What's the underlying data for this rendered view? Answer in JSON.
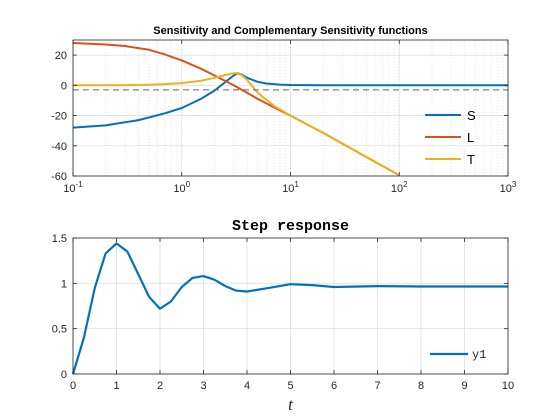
{
  "colors": {
    "S": "#0072BD",
    "L": "#D95319",
    "T": "#EDB120",
    "y1": "#0072BD",
    "axis": "#262626",
    "grid": "#DFDFDF",
    "threshold": "#666666"
  },
  "chart_data": [
    {
      "type": "line",
      "title": "Sensitivity and Complementary Sensitivity functions",
      "xlabel": "",
      "ylabel": "",
      "xscale": "log",
      "xlim": [
        0.1,
        1000
      ],
      "ylim": [
        -60,
        30
      ],
      "yticks": [
        {
          "value": 20,
          "label": "20"
        },
        {
          "value": 0,
          "label": "0"
        },
        {
          "value": -20,
          "label": "-20"
        },
        {
          "value": -40,
          "label": "-40"
        },
        {
          "value": -60,
          "label": "-60"
        }
      ],
      "xticks": [
        {
          "value": 0.1,
          "base": "10",
          "exp": "-1"
        },
        {
          "value": 1,
          "base": "10",
          "exp": "0"
        },
        {
          "value": 10,
          "base": "10",
          "exp": "1"
        },
        {
          "value": 100,
          "base": "10",
          "exp": "2"
        },
        {
          "value": 1000,
          "base": "10",
          "exp": "3"
        }
      ],
      "grid": true,
      "legend_position": "bottom-right",
      "threshold_line": -3,
      "series": [
        {
          "name": "S",
          "x": [
            0.1,
            0.2,
            0.4,
            0.7,
            1,
            1.5,
            2,
            2.5,
            3,
            3.3,
            3.6,
            4,
            5,
            6,
            8,
            10,
            20,
            100,
            1000
          ],
          "y": [
            -28,
            -26.5,
            -23,
            -18.5,
            -15,
            -9,
            -3.5,
            2,
            6.5,
            8,
            7,
            5,
            2.3,
            1.2,
            0.5,
            0.2,
            0,
            0,
            0
          ]
        },
        {
          "name": "L",
          "x": [
            0.1,
            0.2,
            0.3,
            0.5,
            0.7,
            1,
            1.5,
            2,
            2.5,
            3,
            4,
            5,
            7,
            10,
            20,
            50,
            100
          ],
          "y": [
            28,
            27,
            26,
            23.5,
            20.5,
            16.5,
            11,
            6.5,
            3,
            0,
            -5,
            -9,
            -14.5,
            -20,
            -31.5,
            -47.5,
            -59.5
          ]
        },
        {
          "name": "T",
          "x": [
            0.1,
            0.3,
            0.5,
            0.7,
            1,
            1.5,
            2,
            2.5,
            3,
            3.3,
            3.6,
            4,
            5,
            7,
            10,
            20,
            50,
            100
          ],
          "y": [
            0,
            0.1,
            0.4,
            0.8,
            1.5,
            3,
            5,
            6.8,
            8,
            8,
            6.5,
            3.5,
            -5,
            -13.5,
            -20,
            -31.5,
            -47.5,
            -59.5
          ]
        }
      ]
    },
    {
      "type": "line",
      "title": "Step response",
      "xlabel": "t",
      "ylabel": "",
      "xlim": [
        0,
        10
      ],
      "ylim": [
        0,
        1.5
      ],
      "xticks": [
        {
          "value": 0,
          "label": "0"
        },
        {
          "value": 1,
          "label": "1"
        },
        {
          "value": 2,
          "label": "2"
        },
        {
          "value": 3,
          "label": "3"
        },
        {
          "value": 4,
          "label": "4"
        },
        {
          "value": 5,
          "label": "5"
        },
        {
          "value": 6,
          "label": "6"
        },
        {
          "value": 7,
          "label": "7"
        },
        {
          "value": 8,
          "label": "8"
        },
        {
          "value": 9,
          "label": "9"
        },
        {
          "value": 10,
          "label": "10"
        }
      ],
      "yticks": [
        {
          "value": 0,
          "label": "0"
        },
        {
          "value": 0.5,
          "label": "0.5"
        },
        {
          "value": 1,
          "label": "1"
        },
        {
          "value": 1.5,
          "label": "1.5"
        }
      ],
      "grid": true,
      "legend_position": "bottom-right",
      "series": [
        {
          "name": "y1",
          "x": [
            0,
            0.25,
            0.5,
            0.75,
            1,
            1.25,
            1.5,
            1.75,
            2,
            2.25,
            2.5,
            2.75,
            3,
            3.25,
            3.5,
            3.75,
            4,
            4.5,
            5,
            5.5,
            6,
            7,
            8,
            9,
            10
          ],
          "y": [
            0,
            0.4,
            0.95,
            1.33,
            1.44,
            1.35,
            1.1,
            0.85,
            0.72,
            0.8,
            0.96,
            1.06,
            1.08,
            1.04,
            0.97,
            0.92,
            0.91,
            0.95,
            0.99,
            0.98,
            0.96,
            0.97,
            0.965,
            0.965,
            0.965
          ]
        }
      ]
    }
  ]
}
